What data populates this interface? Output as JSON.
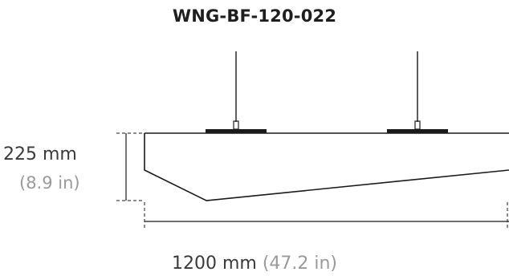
{
  "title": "WNG-BF-120-022",
  "height_dimension": {
    "metric": "225 mm",
    "imperial": "(8.9 in)"
  },
  "width_dimension": {
    "metric": "1200 mm",
    "imperial": "(47.2 in)"
  },
  "colors": {
    "line": "#1a1a1a",
    "secondary_text": "#9a9a9a",
    "primary_text": "#3a3a3a"
  }
}
